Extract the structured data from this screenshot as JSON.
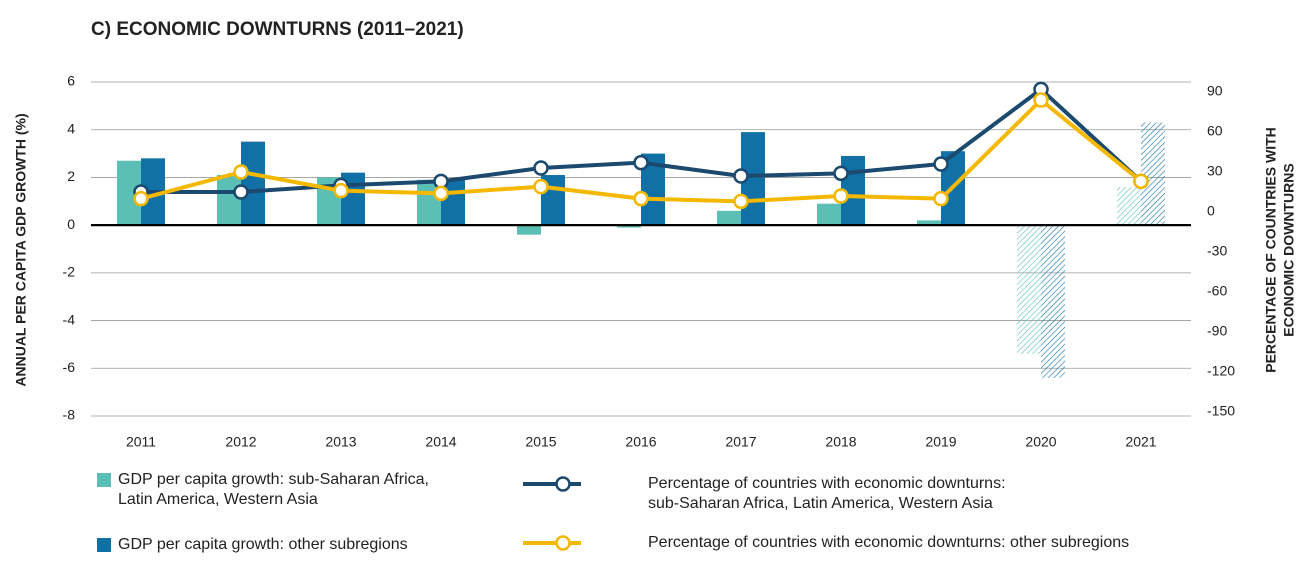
{
  "chart_data": {
    "type": "bar+line",
    "title": "C) ECONOMIC DOWNTURNS (2011–2021)",
    "ylabel": "ANNUAL PER CAPITA GDP GROWTH (%)",
    "y2label": [
      "PERCENTAGE OF COUNTRIES WITH",
      "ECONOMIC DOWNTURNS"
    ],
    "categories": [
      "2011",
      "2012",
      "2013",
      "2014",
      "2015",
      "2016",
      "2017",
      "2018",
      "2019",
      "2020",
      "2021"
    ],
    "ylim": [
      -8,
      6
    ],
    "yticks": [
      -8,
      -6,
      -4,
      -2,
      0,
      2,
      4,
      6
    ],
    "y2lim": [
      -153,
      97.5
    ],
    "y2ticks": [
      -150,
      -120,
      -90,
      -60,
      -30,
      0,
      30,
      60,
      90
    ],
    "grid": true,
    "series": [
      {
        "name": "GDP per capita growth: sub-Saharan Africa,\nLatin America, Western Asia",
        "type": "bar",
        "color": "#5bbfb5",
        "values": [
          2.7,
          2.1,
          2.0,
          1.9,
          -0.4,
          -0.1,
          0.6,
          0.9,
          0.2,
          -5.4,
          1.6
        ],
        "hatched": [
          false,
          false,
          false,
          false,
          false,
          false,
          false,
          false,
          false,
          true,
          true
        ]
      },
      {
        "name": "GDP per capita growth: other subregions",
        "type": "bar",
        "color": "#1170a6",
        "values": [
          2.8,
          3.5,
          2.2,
          1.9,
          2.1,
          3.0,
          3.9,
          2.9,
          3.1,
          -6.4,
          4.3
        ],
        "hatched": [
          false,
          false,
          false,
          false,
          false,
          false,
          false,
          false,
          false,
          true,
          true
        ]
      },
      {
        "name": "Percentage of countries with economic downturns:\nsub-Saharan Africa, Latin America, Western Asia",
        "type": "line",
        "axis": "y2",
        "color": "#1b4a6e",
        "values": [
          15,
          15,
          20,
          23,
          33,
          37,
          27,
          29,
          36,
          92,
          23
        ]
      },
      {
        "name": "Percentage of countries with economic downturns: other subregions",
        "type": "line",
        "axis": "y2",
        "color": "#f5b800",
        "values": [
          10,
          30,
          16,
          14,
          19,
          10,
          8,
          12,
          10,
          84,
          23
        ]
      }
    ]
  }
}
